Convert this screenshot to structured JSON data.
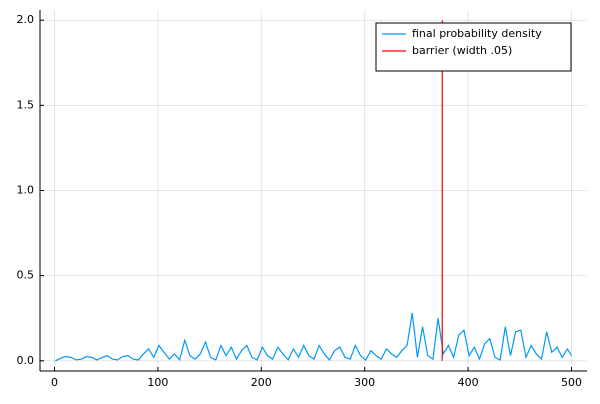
{
  "chart_data": {
    "type": "line",
    "xlim": [
      -14,
      515
    ],
    "ylim": [
      -0.06,
      2.06
    ],
    "xticks": [
      0,
      100,
      200,
      300,
      400,
      500
    ],
    "yticks": [
      {
        "value": 0,
        "label": "0.0"
      },
      {
        "value": 0.5,
        "label": "0.5"
      },
      {
        "value": 1,
        "label": "1.0"
      },
      {
        "value": 1.5,
        "label": "1.5"
      },
      {
        "value": 2,
        "label": "2.0"
      }
    ],
    "grid": true,
    "legend": "top-right",
    "series": [
      {
        "name": "final probability density",
        "color": "#009af9",
        "x": [
          1,
          6,
          11,
          16,
          21,
          26,
          31,
          36,
          41,
          46,
          51,
          56,
          61,
          66,
          71,
          76,
          81,
          86,
          91,
          96,
          101,
          106,
          111,
          116,
          121,
          126,
          131,
          136,
          141,
          146,
          151,
          156,
          161,
          166,
          171,
          176,
          181,
          186,
          191,
          196,
          201,
          206,
          211,
          216,
          221,
          226,
          231,
          236,
          241,
          246,
          251,
          256,
          261,
          266,
          271,
          276,
          281,
          286,
          291,
          296,
          301,
          306,
          311,
          316,
          321,
          326,
          331,
          336,
          341,
          346,
          351,
          356,
          361,
          366,
          371,
          376,
          381,
          386,
          391,
          396,
          401,
          406,
          411,
          416,
          421,
          426,
          431,
          436,
          441,
          446,
          451,
          456,
          461,
          466,
          471,
          476,
          481,
          486,
          491,
          496,
          500
        ],
        "values": [
          0.0,
          0.015,
          0.025,
          0.02,
          0.005,
          0.01,
          0.025,
          0.02,
          0.005,
          0.02,
          0.03,
          0.01,
          0.005,
          0.025,
          0.03,
          0.01,
          0.005,
          0.04,
          0.07,
          0.02,
          0.09,
          0.05,
          0.01,
          0.04,
          0.005,
          0.12,
          0.03,
          0.01,
          0.04,
          0.11,
          0.02,
          0.005,
          0.09,
          0.03,
          0.08,
          0.01,
          0.06,
          0.09,
          0.02,
          0.005,
          0.08,
          0.03,
          0.01,
          0.08,
          0.04,
          0.005,
          0.07,
          0.02,
          0.09,
          0.03,
          0.01,
          0.09,
          0.04,
          0.005,
          0.06,
          0.08,
          0.02,
          0.01,
          0.09,
          0.03,
          0.005,
          0.06,
          0.03,
          0.01,
          0.07,
          0.04,
          0.02,
          0.06,
          0.09,
          0.28,
          0.02,
          0.2,
          0.03,
          0.01,
          0.25,
          0.04,
          0.09,
          0.02,
          0.15,
          0.18,
          0.03,
          0.08,
          0.01,
          0.1,
          0.13,
          0.02,
          0.005,
          0.2,
          0.03,
          0.17,
          0.18,
          0.02,
          0.09,
          0.04,
          0.01,
          0.17,
          0.05,
          0.08,
          0.02,
          0.07,
          0.03
        ]
      },
      {
        "name": "barrier (width .05)",
        "color": "#ff0000",
        "x": [
          375,
          375
        ],
        "values": [
          0,
          2
        ]
      }
    ]
  }
}
